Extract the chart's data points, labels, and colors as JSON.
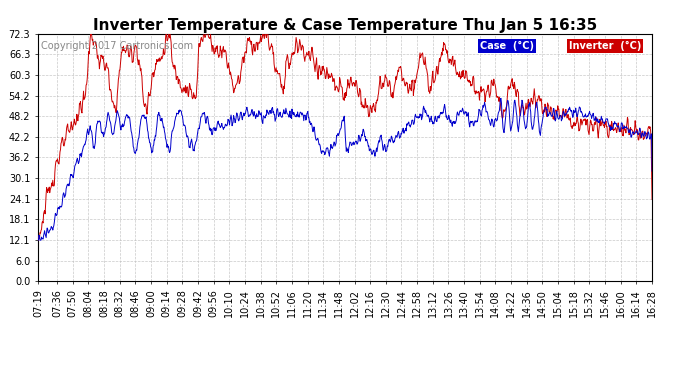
{
  "title": "Inverter Temperature & Case Temperature Thu Jan 5 16:35",
  "copyright": "Copyright 2017 Cartronics.com",
  "legend_case_label": "Case  (°C)",
  "legend_inverter_label": "Inverter  (°C)",
  "case_line_color": "#0000cc",
  "inverter_line_color": "#cc0000",
  "background_color": "#ffffff",
  "plot_bg_color": "#ffffff",
  "grid_color": "#bbbbbb",
  "ylim": [
    0.0,
    72.3
  ],
  "yticks": [
    0.0,
    6.0,
    12.1,
    18.1,
    24.1,
    30.1,
    36.2,
    42.2,
    48.2,
    54.2,
    60.3,
    66.3,
    72.3
  ],
  "title_fontsize": 11,
  "axis_fontsize": 7,
  "copyright_fontsize": 7,
  "x_start_min": 439,
  "x_end_min": 988,
  "xtick_labels": [
    "07:19",
    "07:36",
    "07:50",
    "08:04",
    "08:18",
    "08:32",
    "08:46",
    "09:00",
    "09:14",
    "09:28",
    "09:42",
    "09:56",
    "10:10",
    "10:24",
    "10:38",
    "10:52",
    "11:06",
    "11:20",
    "11:34",
    "11:48",
    "12:02",
    "12:16",
    "12:30",
    "12:44",
    "12:58",
    "13:12",
    "13:26",
    "13:40",
    "13:54",
    "14:08",
    "14:22",
    "14:36",
    "14:50",
    "15:04",
    "15:18",
    "15:32",
    "15:46",
    "16:00",
    "16:14",
    "16:28"
  ],
  "xtick_minutes": [
    439,
    456,
    470,
    484,
    498,
    512,
    526,
    540,
    554,
    568,
    582,
    596,
    610,
    624,
    638,
    652,
    666,
    680,
    694,
    708,
    722,
    736,
    750,
    764,
    778,
    792,
    806,
    820,
    834,
    848,
    862,
    876,
    890,
    904,
    918,
    932,
    946,
    960,
    974,
    988
  ]
}
